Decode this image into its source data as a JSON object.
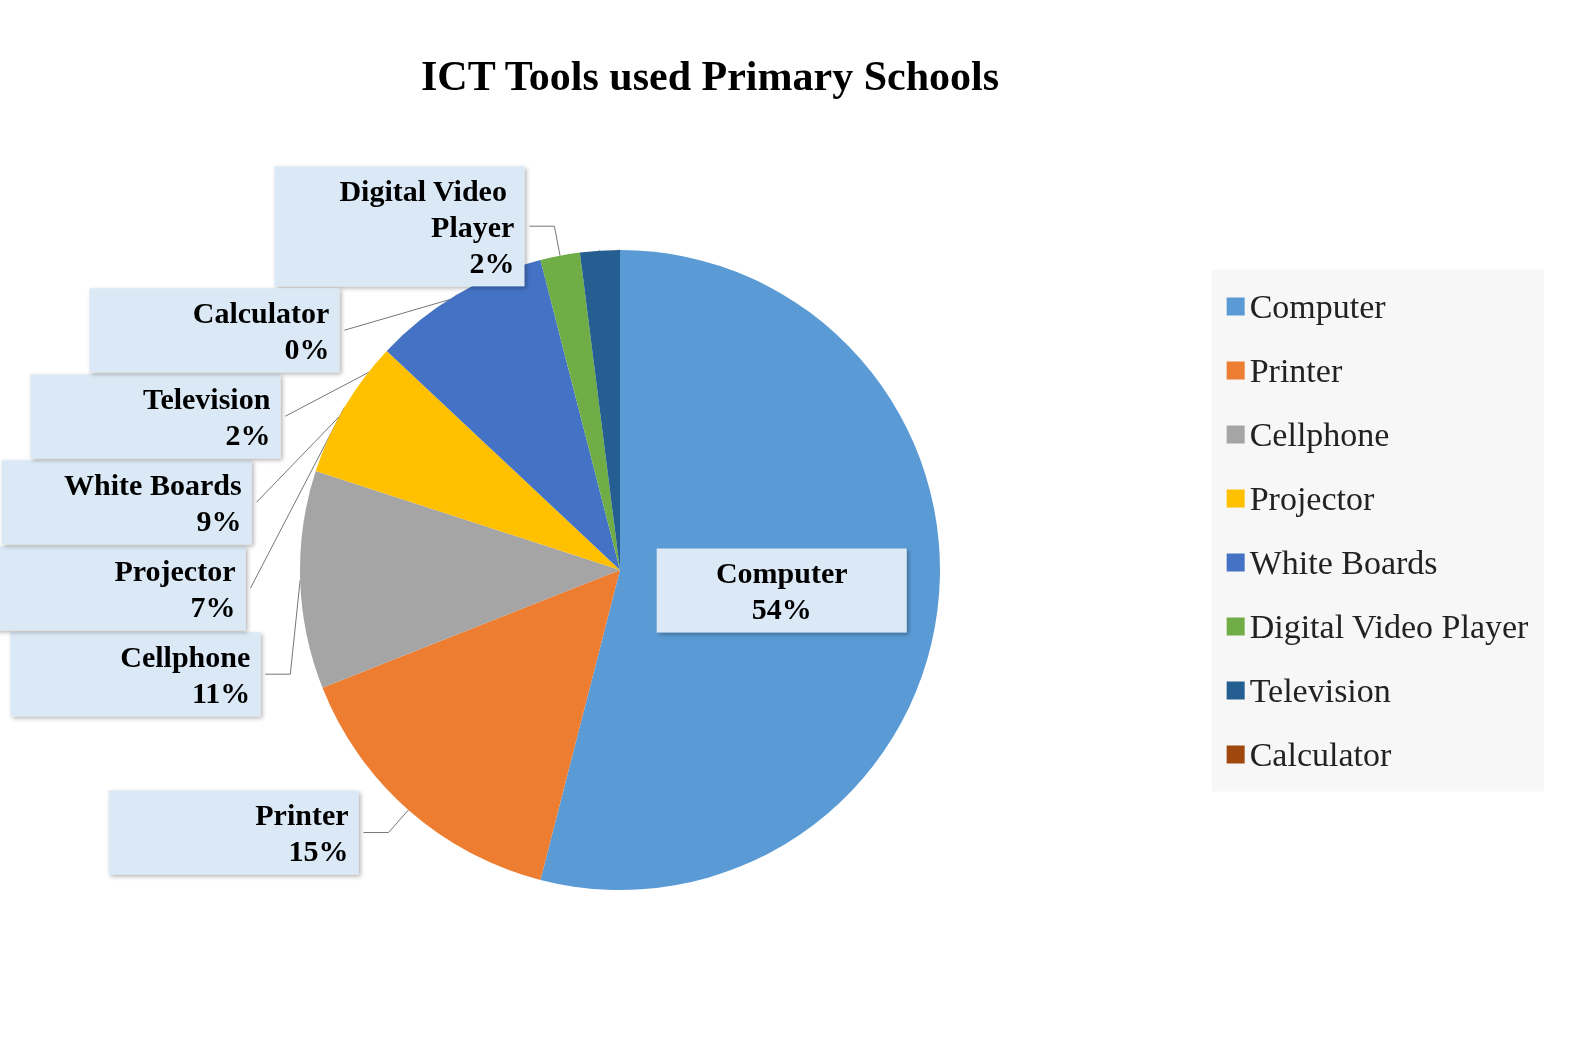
{
  "chart_data": {
    "type": "pie",
    "title": "ICT Tools used Primary Schools",
    "categories": [
      "Computer",
      "Printer",
      "Cellphone",
      "Projector",
      "White Boards",
      "Digital Video Player",
      "Television",
      "Calculator"
    ],
    "values": [
      54,
      15,
      11,
      7,
      9,
      2,
      2,
      0
    ],
    "value_labels": [
      "54%",
      "15%",
      "11%",
      "7%",
      "9%",
      "2%",
      "2%",
      "0%"
    ],
    "colors": [
      "#5b9bd5",
      "#ed7d31",
      "#a5a5a5",
      "#ffc000",
      "#4472c4",
      "#70ad47",
      "#255e91",
      "#9e480e"
    ],
    "legend": "right"
  }
}
